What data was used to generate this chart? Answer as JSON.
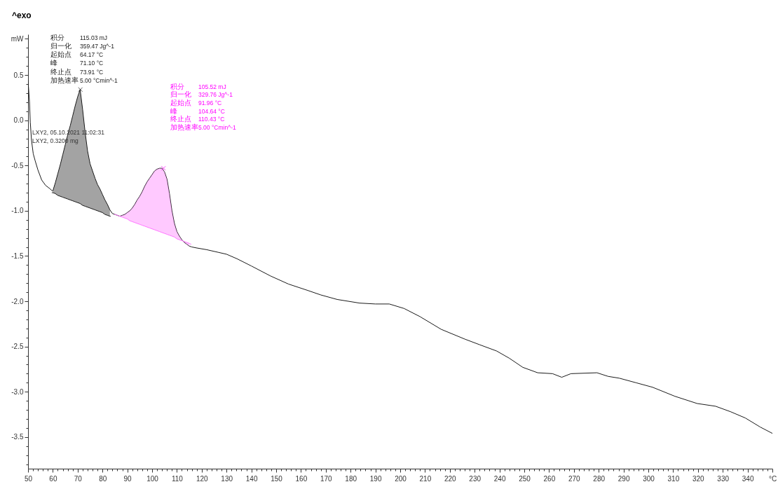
{
  "chart_data": {
    "type": "line",
    "title": "^exo",
    "annotations": [
      "积分",
      "115.03 mJ",
      "归一化",
      "359.47 Jg^-1",
      "起始点",
      "64.17 °C",
      "峰",
      "71.10 °C",
      "终止点",
      "73.91 °C",
      "加热速率",
      "5.00 °Cmin^-1",
      "积分",
      "105.52 mJ",
      "归一化",
      "329.76 Jg^-1",
      "起始点",
      "91.96 °C",
      "峰",
      "104.64 °C",
      "终止点",
      "110.43 °C",
      "加热速率",
      "5.00 °Cmin^-1",
      "LXY2, 05.10.2021 11:02:31",
      "LXY2, 0.3200 mg"
    ],
    "xlim": [
      50,
      350
    ],
    "ylim": [
      -3.85,
      0.95
    ],
    "xticks": [
      50,
      {
        "value": 52,
        "label": null
      },
      {
        "value": 54,
        "label": null
      },
      {
        "value": 56,
        "label": null
      },
      {
        "value": 58,
        "label": null
      },
      60,
      {
        "value": 62,
        "label": null
      },
      {
        "value": 64,
        "label": null
      },
      {
        "value": 66,
        "label": null
      },
      {
        "value": 68,
        "label": null
      },
      70,
      {
        "value": 72,
        "label": null
      },
      {
        "value": 74,
        "label": null
      },
      {
        "value": 76,
        "label": null
      },
      {
        "value": 78,
        "label": null
      },
      80,
      {
        "value": 82,
        "label": null
      },
      {
        "value": 84,
        "label": null
      },
      {
        "value": 86,
        "label": null
      },
      {
        "value": 88,
        "label": null
      },
      90,
      {
        "value": 92,
        "label": null
      },
      {
        "value": 94,
        "label": null
      },
      {
        "value": 96,
        "label": null
      },
      {
        "value": 98,
        "label": null
      },
      100,
      {
        "value": 102,
        "label": null
      },
      {
        "value": 104,
        "label": null
      },
      {
        "value": 106,
        "label": null
      },
      {
        "value": 108,
        "label": null
      },
      110,
      {
        "value": 112,
        "label": null
      },
      {
        "value": 114,
        "label": null
      },
      {
        "value": 116,
        "label": null
      },
      {
        "value": 118,
        "label": null
      },
      120,
      {
        "value": 122,
        "label": null
      },
      {
        "value": 124,
        "label": null
      },
      {
        "value": 126,
        "label": null
      },
      {
        "value": 128,
        "label": null
      },
      130,
      {
        "value": 132,
        "label": null
      },
      {
        "value": 134,
        "label": null
      },
      {
        "value": 136,
        "label": null
      },
      {
        "value": 138,
        "label": null
      },
      140,
      {
        "value": 142,
        "label": null
      },
      {
        "value": 144,
        "label": null
      },
      {
        "value": 146,
        "label": null
      },
      {
        "value": 148,
        "label": null
      },
      150,
      {
        "value": 152,
        "label": null
      },
      {
        "value": 154,
        "label": null
      },
      {
        "value": 156,
        "label": null
      },
      {
        "value": 158,
        "label": null
      },
      160,
      {
        "value": 162,
        "label": null
      },
      {
        "value": 164,
        "label": null
      },
      {
        "value": 166,
        "label": null
      },
      {
        "value": 168,
        "label": null
      },
      170,
      {
        "value": 172,
        "label": null
      },
      {
        "value": 174,
        "label": null
      },
      {
        "value": 176,
        "label": null
      },
      {
        "value": 178,
        "label": null
      },
      180,
      {
        "value": 182,
        "label": null
      },
      {
        "value": 184,
        "label": null
      },
      {
        "value": 186,
        "label": null
      },
      {
        "value": 188,
        "label": null
      },
      190,
      {
        "value": 192,
        "label": null
      },
      {
        "value": 194,
        "label": null
      },
      {
        "value": 196,
        "label": null
      },
      {
        "value": 198,
        "label": null
      },
      200,
      {
        "value": 202,
        "label": null
      },
      {
        "value": 204,
        "label": null
      },
      {
        "value": 206,
        "label": null
      },
      {
        "value": 208,
        "label": null
      },
      210,
      {
        "value": 212,
        "label": null
      },
      {
        "value": 214,
        "label": null
      },
      {
        "value": 216,
        "label": null
      },
      {
        "value": 218,
        "label": null
      },
      220,
      {
        "value": 222,
        "label": null
      },
      {
        "value": 224,
        "label": null
      },
      {
        "value": 226,
        "label": null
      },
      {
        "value": 228,
        "label": null
      },
      230,
      {
        "value": 232,
        "label": null
      },
      {
        "value": 234,
        "label": null
      },
      {
        "value": 236,
        "label": null
      },
      {
        "value": 238,
        "label": null
      },
      240,
      {
        "value": 242,
        "label": null
      },
      {
        "value": 244,
        "label": null
      },
      {
        "value": 246,
        "label": null
      },
      {
        "value": 248,
        "label": null
      },
      250,
      {
        "value": 252,
        "label": null
      },
      {
        "value": 254,
        "label": null
      },
      {
        "value": 256,
        "label": null
      },
      {
        "value": 258,
        "label": null
      },
      260,
      {
        "value": 262,
        "label": null
      },
      {
        "value": 264,
        "label": null
      },
      {
        "value": 266,
        "label": null
      },
      {
        "value": 268,
        "label": null
      },
      270,
      {
        "value": 272,
        "label": null
      },
      {
        "value": 274,
        "label": null
      },
      {
        "value": 276,
        "label": null
      },
      {
        "value": 278,
        "label": null
      },
      280,
      {
        "value": 282,
        "label": null
      },
      {
        "value": 284,
        "label": null
      },
      {
        "value": 286,
        "label": null
      },
      {
        "value": 288,
        "label": null
      },
      290,
      {
        "value": 292,
        "label": null
      },
      {
        "value": 294,
        "label": null
      },
      {
        "value": 296,
        "label": null
      },
      {
        "value": 298,
        "label": null
      },
      300,
      {
        "value": 302,
        "label": null
      },
      {
        "value": 304,
        "label": null
      },
      {
        "value": 306,
        "label": null
      },
      {
        "value": 308,
        "label": null
      },
      310,
      {
        "value": 312,
        "label": null
      },
      {
        "value": 314,
        "label": null
      },
      {
        "value": 316,
        "label": null
      },
      {
        "value": 318,
        "label": null
      },
      320,
      {
        "value": 322,
        "label": null
      },
      {
        "value": 324,
        "label": null
      },
      {
        "value": 326,
        "label": null
      },
      {
        "value": 328,
        "label": null
      },
      330,
      {
        "value": 332,
        "label": null
      },
      {
        "value": 334,
        "label": null
      },
      {
        "value": 336,
        "label": null
      },
      {
        "value": 338,
        "label": null
      },
      340,
      {
        "value": 342,
        "label": null
      },
      {
        "value": 344,
        "label": null
      },
      {
        "value": 346,
        "label": null
      },
      {
        "value": 348,
        "label": null
      },
      {
        "value": 350,
        "label": "°C"
      }
    ],
    "yticks": [
      {
        "value": -3.8,
        "label": null
      },
      {
        "value": -3.7,
        "label": null
      },
      {
        "value": -3.6,
        "label": null
      },
      -3.5,
      {
        "value": -3.4,
        "label": null
      },
      {
        "value": -3.3,
        "label": null
      },
      {
        "value": -3.2,
        "label": null
      },
      {
        "value": -3.1,
        "label": null
      },
      {
        "value": -3,
        "label": "-3.0"
      },
      {
        "value": -2.9,
        "label": null
      },
      {
        "value": -2.8,
        "label": null
      },
      {
        "value": -2.7,
        "label": null
      },
      {
        "value": -2.6,
        "label": null
      },
      -2.5,
      {
        "value": -2.4,
        "label": null
      },
      {
        "value": -2.3,
        "label": null
      },
      {
        "value": -2.2,
        "label": null
      },
      {
        "value": -2.1,
        "label": null
      },
      {
        "value": -2,
        "label": "-2.0"
      },
      {
        "value": -1.9,
        "label": null
      },
      {
        "value": -1.8,
        "label": null
      },
      {
        "value": -1.7,
        "label": null
      },
      {
        "value": -1.6,
        "label": null
      },
      -1.5,
      {
        "value": -1.4,
        "label": null
      },
      {
        "value": -1.3,
        "label": null
      },
      {
        "value": -1.2,
        "label": null
      },
      {
        "value": -1.1,
        "label": null
      },
      {
        "value": -1,
        "label": "-1.0"
      },
      {
        "value": -0.9,
        "label": null
      },
      {
        "value": -0.8,
        "label": null
      },
      {
        "value": -0.7,
        "label": null
      },
      {
        "value": -0.6,
        "label": null
      },
      -0.5,
      {
        "value": -0.4,
        "label": null
      },
      {
        "value": -0.3,
        "label": null
      },
      {
        "value": -0.2,
        "label": null
      },
      {
        "value": -0.1,
        "label": null
      },
      {
        "value": 0,
        "label": "0.0"
      },
      {
        "value": 0.1,
        "label": null
      },
      {
        "value": 0.2,
        "label": null
      },
      {
        "value": 0.3,
        "label": null
      },
      {
        "value": 0.4,
        "label": null
      },
      0.5,
      {
        "value": 0.6,
        "label": null
      },
      {
        "value": 0.7,
        "label": null
      },
      {
        "value": 0.8,
        "label": null
      },
      {
        "value": 0.9,
        "label": "mW"
      }
    ],
    "series": [
      {
        "color": "#1a1a1a",
        "x": [
          50,
          50.6,
          50.9,
          51.4,
          52.1,
          52.9,
          54,
          55.5,
          57.1,
          59,
          59.7,
          60,
          61,
          62,
          63,
          64,
          65,
          66,
          67,
          68,
          69,
          70,
          71,
          72,
          73,
          74,
          75,
          76,
          77,
          78,
          79,
          80,
          81,
          82,
          83,
          84,
          85,
          86,
          87,
          88,
          89,
          90,
          91,
          92,
          93,
          94,
          95,
          96,
          97,
          98,
          99,
          100,
          101,
          102,
          103,
          104,
          105,
          106,
          107,
          108,
          109,
          110,
          111,
          112,
          113,
          114,
          115,
          116,
          117.8,
          122,
          126.8,
          130,
          134.2,
          140,
          147.7,
          155,
          162.7,
          168,
          174.6,
          183.6,
          190,
          195.6,
          201.6,
          208,
          216.5,
          226.2,
          232,
          238.9,
          244,
          249.4,
          255.4,
          261.4,
          265.1,
          268.8,
          279.3,
          283.8,
          288.3,
          295,
          301.7,
          310.7,
          319.7,
          327.1,
          333.1,
          339.1,
          345.1,
          350
        ],
        "values": [
          0.44,
          0.2,
          -0.02,
          -0.22,
          -0.37,
          -0.45,
          -0.55,
          -0.66,
          -0.72,
          -0.76,
          -0.78,
          -0.78,
          -0.69,
          -0.59,
          -0.49,
          -0.38,
          -0.27,
          -0.16,
          -0.06,
          0.05,
          0.16,
          0.26,
          0.34,
          0.12,
          -0.13,
          -0.34,
          -0.48,
          -0.56,
          -0.64,
          -0.71,
          -0.76,
          -0.82,
          -0.88,
          -0.93,
          -0.99,
          -1.03,
          -1.04,
          -1.05,
          -1.06,
          -1.05,
          -1.04,
          -1.02,
          -1.0,
          -0.97,
          -0.93,
          -0.88,
          -0.84,
          -0.79,
          -0.73,
          -0.68,
          -0.64,
          -0.6,
          -0.56,
          -0.54,
          -0.53,
          -0.53,
          -0.57,
          -0.65,
          -0.81,
          -1.0,
          -1.14,
          -1.23,
          -1.28,
          -1.32,
          -1.35,
          -1.37,
          -1.39,
          -1.4,
          -1.41,
          -1.43,
          -1.46,
          -1.48,
          -1.53,
          -1.61,
          -1.72,
          -1.81,
          -1.88,
          -1.93,
          -1.98,
          -2.02,
          -2.03,
          -2.03,
          -2.08,
          -2.17,
          -2.31,
          -2.42,
          -2.48,
          -2.55,
          -2.63,
          -2.73,
          -2.79,
          -2.8,
          -2.84,
          -2.8,
          -2.79,
          -2.83,
          -2.85,
          -2.9,
          -2.95,
          -3.05,
          -3.13,
          -3.16,
          -3.22,
          -3.29,
          -3.39,
          -3.46
        ]
      },
      {
        "color": "#1a1a1a",
        "x": [
          59.7,
          60,
          61,
          62,
          63,
          64,
          65,
          66,
          67,
          68,
          69,
          70,
          71,
          72,
          73,
          74,
          75,
          76,
          77,
          78,
          79,
          80,
          81,
          82,
          83,
          83.2
        ],
        "values": [
          -0.8,
          -0.8,
          -0.81,
          -0.83,
          -0.84,
          -0.85,
          -0.86,
          -0.87,
          -0.88,
          -0.89,
          -0.9,
          -0.91,
          -0.92,
          -0.94,
          -0.95,
          -0.96,
          -0.97,
          -0.98,
          -0.99,
          -1.0,
          -1.01,
          -1.02,
          -1.04,
          -1.05,
          -1.06,
          -1.06
        ],
        "lower": [
          null,
          -0.8,
          -0.81,
          -0.83,
          -0.84,
          -0.85,
          -0.86,
          -0.87,
          -0.88,
          -0.89,
          -0.9,
          -0.91,
          -0.92,
          -0.94,
          -0.95,
          -0.96,
          -0.97,
          -0.98,
          -0.99,
          -1.0,
          -1.01,
          -1.02,
          -1.04,
          -1.05,
          -1.06,
          null
        ],
        "upper": [
          null,
          -0.78,
          -0.69,
          -0.59,
          -0.49,
          -0.38,
          -0.27,
          -0.16,
          -0.06,
          0.05,
          0.16,
          0.26,
          0.34,
          0.12,
          -0.13,
          -0.34,
          -0.48,
          -0.56,
          -0.64,
          -0.71,
          -0.76,
          -0.82,
          -0.88,
          -0.93,
          -0.99,
          null
        ]
      },
      {
        "color": "#ff77ff",
        "x": [
          84.8,
          85,
          86,
          87,
          88,
          89,
          90,
          91,
          92,
          93,
          94,
          95,
          96,
          97,
          98,
          99,
          100,
          101,
          102,
          103,
          104,
          105,
          106,
          107,
          108,
          109,
          110,
          111,
          112,
          113,
          114,
          115,
          115.7
        ],
        "values": [
          -1.04,
          -1.04,
          -1.05,
          -1.06,
          -1.07,
          -1.08,
          -1.09,
          -1.11,
          -1.12,
          -1.13,
          -1.14,
          -1.15,
          -1.16,
          -1.17,
          -1.18,
          -1.19,
          -1.2,
          -1.21,
          -1.22,
          -1.23,
          -1.24,
          -1.25,
          -1.26,
          -1.27,
          -1.28,
          -1.29,
          -1.31,
          -1.32,
          -1.33,
          -1.34,
          -1.35,
          -1.36,
          -1.37
        ],
        "lower": [
          null,
          -1.04,
          -1.05,
          -1.06,
          -1.07,
          -1.08,
          -1.09,
          -1.11,
          -1.12,
          -1.13,
          -1.14,
          -1.15,
          -1.16,
          -1.17,
          -1.18,
          -1.19,
          -1.2,
          -1.21,
          -1.22,
          -1.23,
          -1.24,
          -1.25,
          -1.26,
          -1.27,
          -1.28,
          -1.29,
          -1.31,
          -1.32,
          -1.33,
          -1.34,
          -1.35,
          -1.36,
          null
        ],
        "upper": [
          null,
          -1.04,
          -1.05,
          -1.06,
          -1.05,
          -1.04,
          -1.02,
          -1.0,
          -0.97,
          -0.93,
          -0.88,
          -0.84,
          -0.79,
          -0.73,
          -0.68,
          -0.64,
          -0.6,
          -0.56,
          -0.54,
          -0.53,
          -0.53,
          -0.57,
          -0.65,
          -0.81,
          -1.0,
          -1.14,
          -1.23,
          -1.28,
          -1.32,
          -1.35,
          -1.37,
          -1.39,
          null
        ]
      },
      {
        "type": "scatter",
        "marker": "cross",
        "color": "#1a1a1a",
        "x": [
          71.1
        ],
        "values": [
          0.34
        ]
      },
      {
        "type": "scatter",
        "marker": "cross",
        "color": "#ff00ff",
        "x": [
          104.6
        ],
        "values": [
          -0.53
        ]
      }
    ]
  }
}
